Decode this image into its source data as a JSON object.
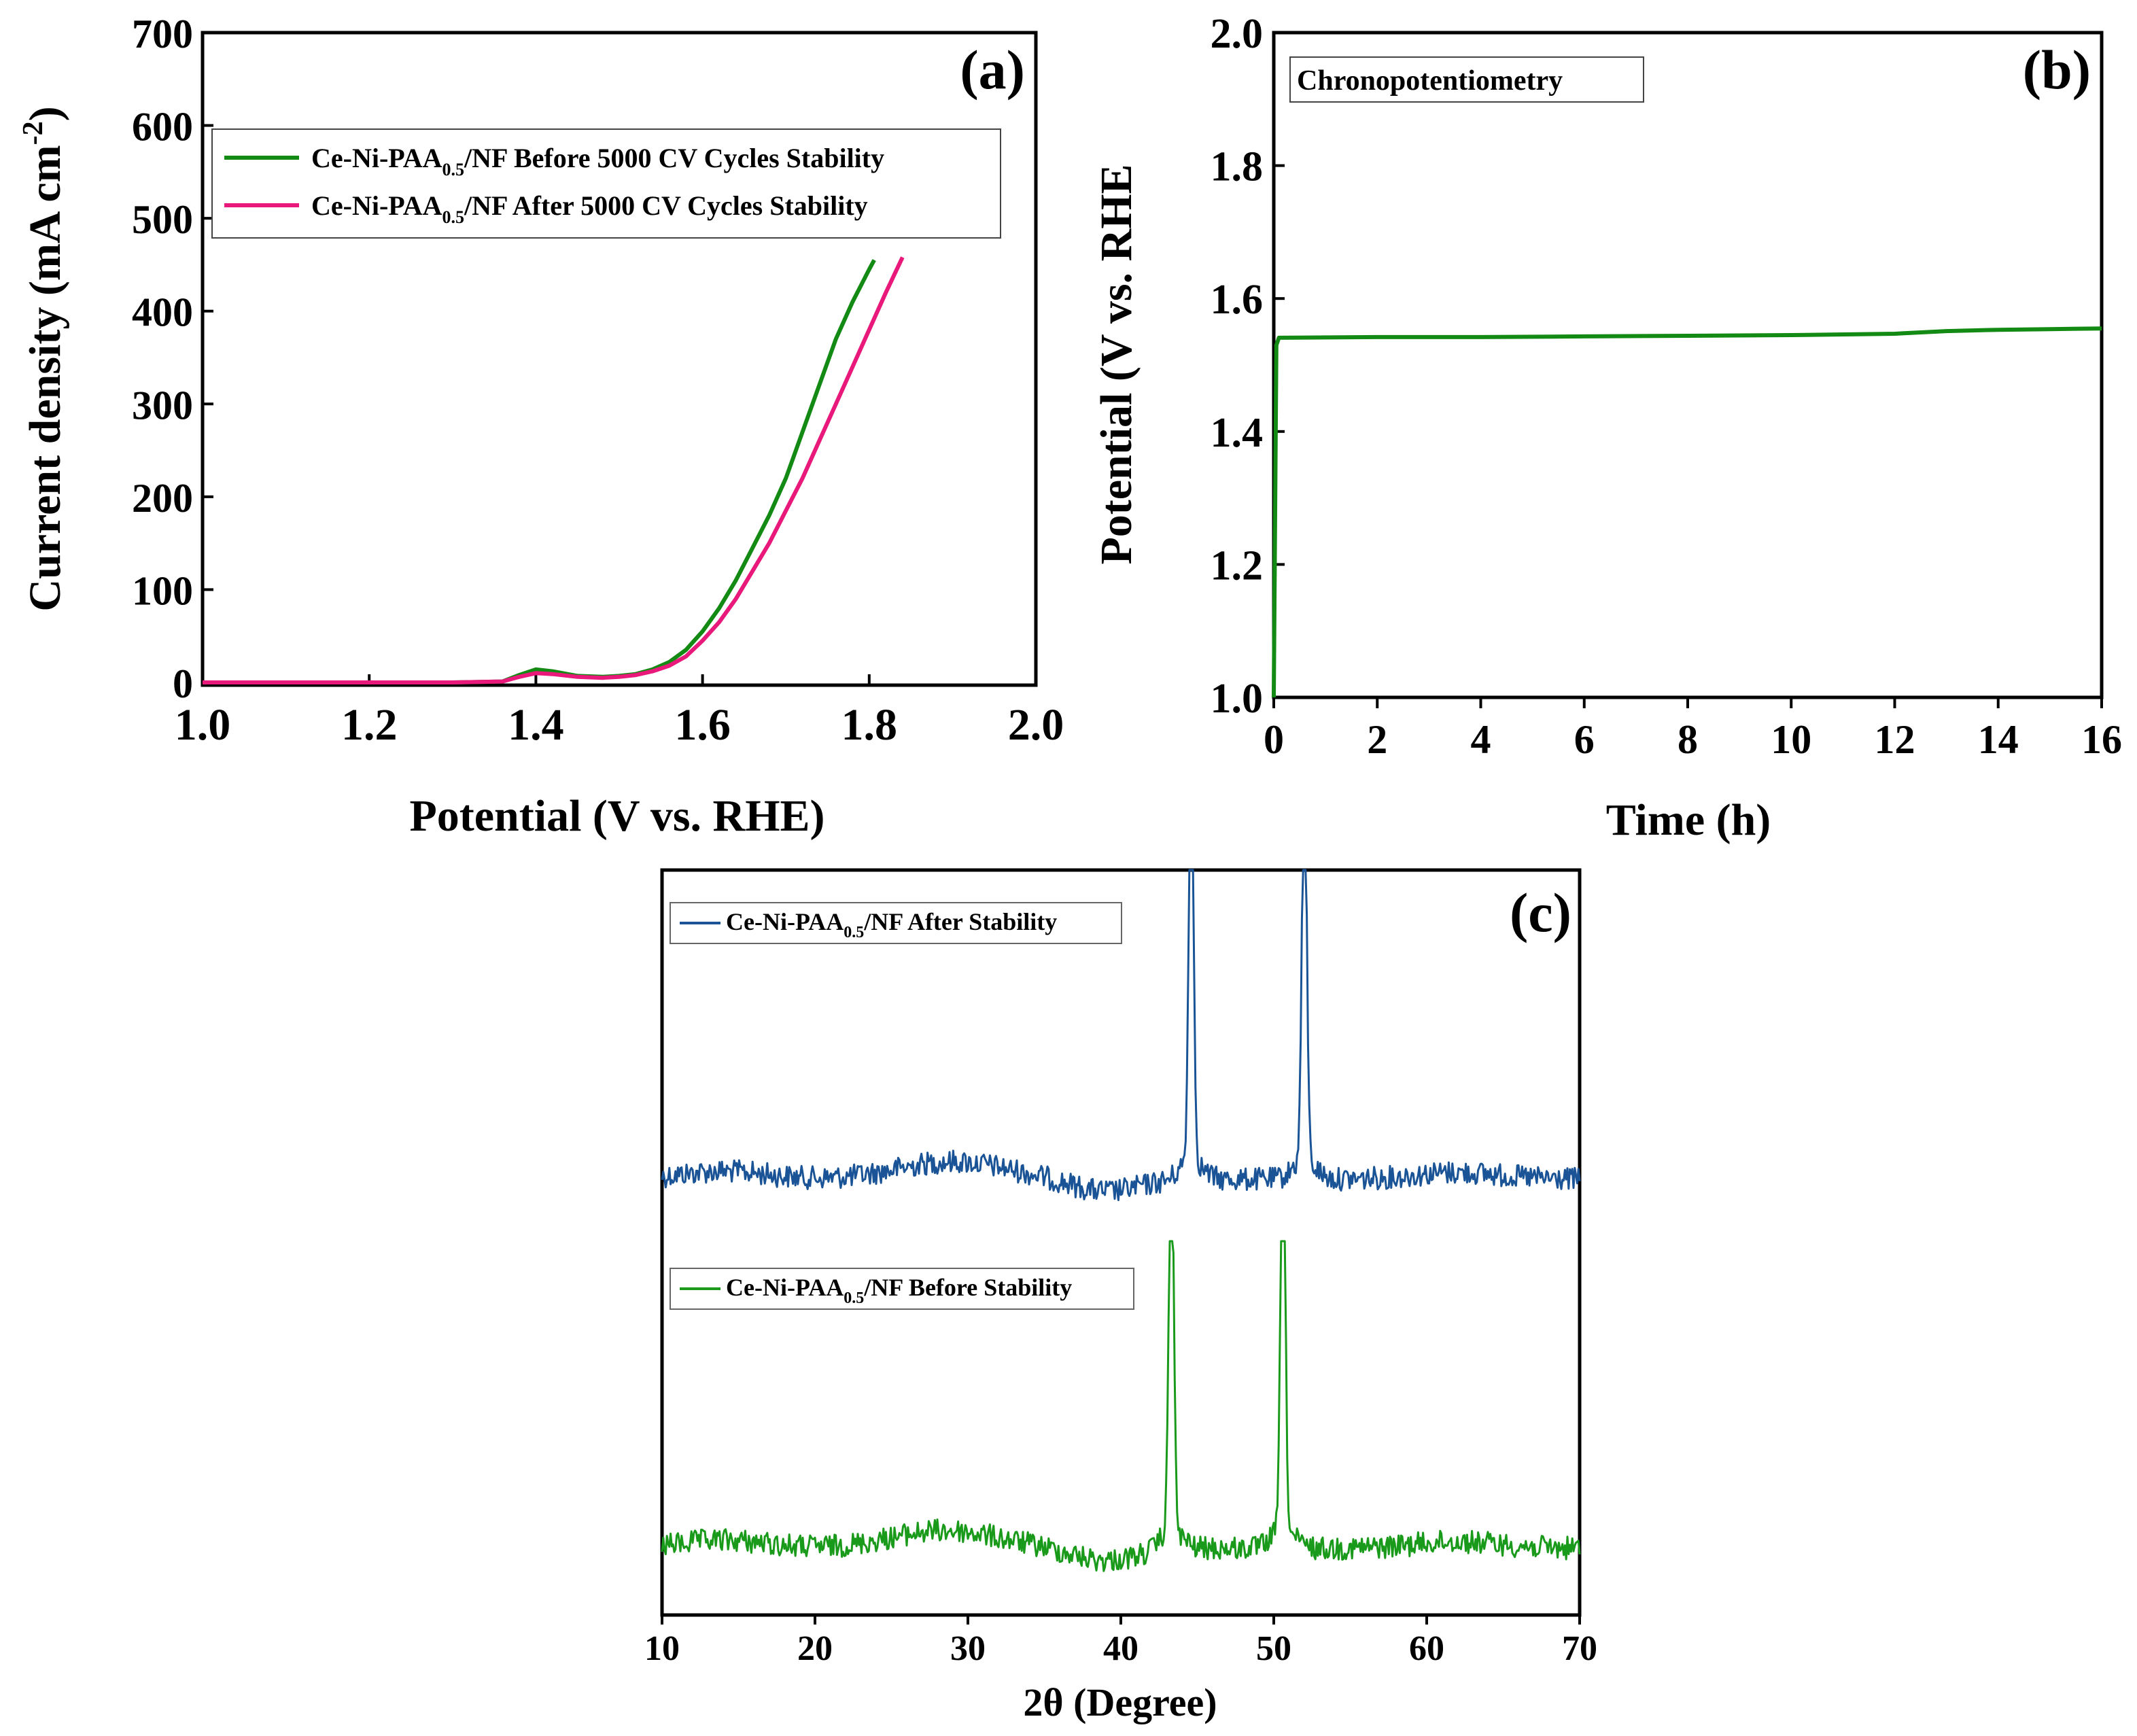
{
  "chart_data": [
    {
      "panel": "(a)",
      "type": "line",
      "xlabel": "Potential (V vs. RHE)",
      "ylabel_main": "Current density (mA cm",
      "ylabel_sup": "-2",
      "ylabel_close": ")",
      "xlim": [
        1.0,
        2.0
      ],
      "ylim": [
        0,
        700
      ],
      "xticks": [
        1.0,
        1.2,
        1.4,
        1.6,
        1.8,
        2.0
      ],
      "xtick_labels": [
        "1.0",
        "1.2",
        "1.4",
        "1.6",
        "1.8",
        "2.0"
      ],
      "yticks": [
        0,
        100,
        200,
        300,
        400,
        500,
        600,
        700
      ],
      "ytick_labels": [
        "0",
        "100",
        "200",
        "300",
        "400",
        "500",
        "600",
        "700"
      ],
      "legend_position": "top-left",
      "series": [
        {
          "name": "Ce-Ni-PAA0.5/NF Before 5000 CV Cycles Stability",
          "legend_main": "Ce-Ni-PAA",
          "legend_sub": "0.5",
          "legend_rest": "/NF Before 5000 CV Cycles Stability",
          "color": "#138a13",
          "x": [
            1.0,
            1.3,
            1.36,
            1.38,
            1.4,
            1.42,
            1.45,
            1.48,
            1.5,
            1.52,
            1.54,
            1.56,
            1.58,
            1.6,
            1.62,
            1.64,
            1.66,
            1.68,
            1.7,
            1.71,
            1.72,
            1.74,
            1.76,
            1.78,
            1.8,
            1.806
          ],
          "y": [
            0,
            0,
            1,
            8,
            14,
            12,
            7,
            6,
            7,
            9,
            14,
            22,
            35,
            55,
            80,
            110,
            145,
            180,
            220,
            245,
            270,
            320,
            370,
            410,
            445,
            455
          ]
        },
        {
          "name": "Ce-Ni-PAA0.5/NF After 5000 CV Cycles Stability",
          "legend_main": "Ce-Ni-PAA",
          "legend_sub": "0.5",
          "legend_rest": "/NF After 5000 CV Cycles Stability",
          "color": "#e8197a",
          "x": [
            1.0,
            1.3,
            1.36,
            1.38,
            1.4,
            1.42,
            1.45,
            1.48,
            1.5,
            1.52,
            1.54,
            1.56,
            1.58,
            1.6,
            1.62,
            1.64,
            1.66,
            1.68,
            1.7,
            1.72,
            1.74,
            1.76,
            1.78,
            1.8,
            1.82,
            1.84
          ],
          "y": [
            0,
            0,
            1,
            6,
            10,
            9,
            6,
            5,
            6,
            8,
            12,
            18,
            28,
            45,
            65,
            90,
            120,
            150,
            185,
            220,
            260,
            300,
            340,
            380,
            420,
            458
          ]
        }
      ]
    },
    {
      "panel": "(b)",
      "type": "line",
      "xlabel": "Time (h)",
      "ylabel": "Potential (V vs. RHE",
      "xlim": [
        0,
        16
      ],
      "ylim": [
        1.0,
        2.0
      ],
      "xticks": [
        0,
        2,
        4,
        6,
        8,
        10,
        12,
        14,
        16
      ],
      "xtick_labels": [
        "0",
        "2",
        "4",
        "6",
        "8",
        "10",
        "12",
        "14",
        "16"
      ],
      "yticks": [
        1.0,
        1.2,
        1.4,
        1.6,
        1.8,
        2.0
      ],
      "ytick_labels": [
        "1.0",
        "1.2",
        "1.4",
        "1.6",
        "1.8",
        "2.0"
      ],
      "legend": "Chronopotentiometry",
      "legend_position": "top-left",
      "series": [
        {
          "name": "Chronopotentiometry",
          "color": "#138a13",
          "x": [
            0,
            0.05,
            0.1,
            2,
            4,
            6,
            8,
            10,
            12,
            13,
            14,
            15,
            16
          ],
          "y": [
            1.0,
            1.53,
            1.541,
            1.542,
            1.542,
            1.543,
            1.544,
            1.545,
            1.547,
            1.551,
            1.553,
            1.554,
            1.555
          ]
        }
      ]
    },
    {
      "panel": "(c)",
      "type": "line",
      "xlabel": "2θ (Degree)",
      "xlim": [
        10,
        70
      ],
      "xticks": [
        10,
        20,
        30,
        40,
        50,
        60,
        70
      ],
      "xtick_labels": [
        "10",
        "20",
        "30",
        "40",
        "50",
        "60",
        "70"
      ],
      "series": [
        {
          "name": "Ce-Ni-PAA0.5/NF After Stability",
          "legend_main": "Ce-Ni-PAA",
          "legend_sub": "0.5",
          "legend_rest": "/NF After Stability",
          "color": "#1a5496",
          "peaks_deg": [
            44.6,
            52.0
          ],
          "broad_hump_deg": 29
        },
        {
          "name": "Ce-Ni-PAA0.5/NF Before Stability",
          "legend_main": "Ce-Ni-PAA",
          "legend_sub": "0.5",
          "legend_rest": "/NF Before Stability",
          "color": "#1a9a1a",
          "peaks_deg": [
            43.3,
            50.6
          ],
          "broad_hump_deg": 28.5
        }
      ]
    }
  ]
}
